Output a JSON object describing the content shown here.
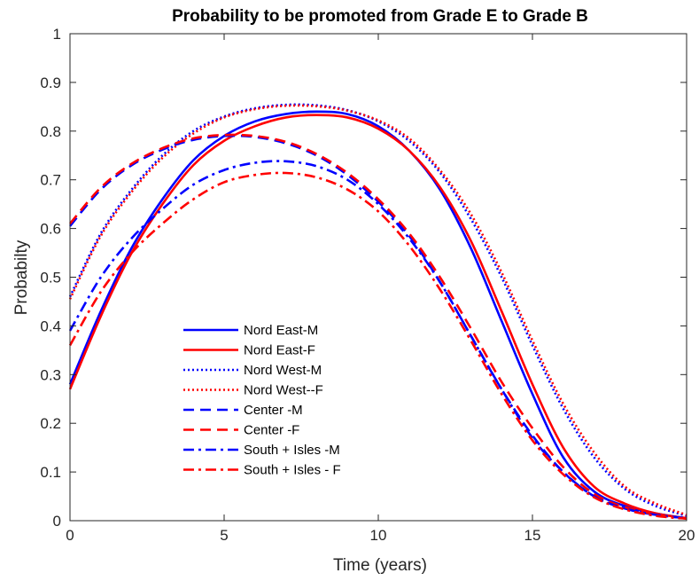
{
  "chart_data": {
    "type": "line",
    "title": "Probability to be promoted from Grade E to Grade B",
    "xlabel": "Time (years)",
    "ylabel": "Probabilty",
    "xlim": [
      0,
      20
    ],
    "ylim": [
      0,
      1
    ],
    "xticks": [
      "0",
      "5",
      "10",
      "15",
      "20"
    ],
    "yticks": [
      "0",
      "0.1",
      "0.2",
      "0.3",
      "0.4",
      "0.5",
      "0.6",
      "0.7",
      "0.8",
      "0.9",
      "1"
    ],
    "grid": false,
    "legend_position": "lower-left",
    "x": [
      0,
      1,
      2,
      3,
      4,
      5,
      6,
      7,
      8,
      9,
      10,
      11,
      12,
      13,
      14,
      15,
      16,
      17,
      18,
      19,
      20
    ],
    "series": [
      {
        "name": "Nord East-M",
        "color": "#0000ff",
        "style": "solid",
        "values": [
          0.28,
          0.43,
          0.56,
          0.66,
          0.74,
          0.79,
          0.82,
          0.835,
          0.84,
          0.835,
          0.81,
          0.76,
          0.68,
          0.56,
          0.41,
          0.26,
          0.13,
          0.06,
          0.03,
          0.015,
          0.005
        ]
      },
      {
        "name": "Nord East-F",
        "color": "#ff0000",
        "style": "solid",
        "values": [
          0.27,
          0.42,
          0.55,
          0.65,
          0.73,
          0.78,
          0.81,
          0.828,
          0.833,
          0.828,
          0.805,
          0.76,
          0.685,
          0.575,
          0.43,
          0.28,
          0.15,
          0.07,
          0.035,
          0.015,
          0.005
        ]
      },
      {
        "name": "Nord West-M",
        "color": "#0000ff",
        "style": "dotted",
        "values": [
          0.46,
          0.59,
          0.68,
          0.75,
          0.8,
          0.83,
          0.847,
          0.854,
          0.853,
          0.843,
          0.82,
          0.78,
          0.715,
          0.62,
          0.5,
          0.36,
          0.23,
          0.13,
          0.065,
          0.03,
          0.01
        ]
      },
      {
        "name": "Nord West--F",
        "color": "#ff0000",
        "style": "dotted",
        "values": [
          0.455,
          0.585,
          0.675,
          0.745,
          0.795,
          0.828,
          0.845,
          0.852,
          0.851,
          0.842,
          0.822,
          0.785,
          0.72,
          0.63,
          0.51,
          0.37,
          0.24,
          0.14,
          0.07,
          0.035,
          0.012
        ]
      },
      {
        "name": "Center -M",
        "color": "#0000ff",
        "style": "dashed",
        "values": [
          0.605,
          0.68,
          0.73,
          0.762,
          0.782,
          0.79,
          0.788,
          0.775,
          0.75,
          0.71,
          0.655,
          0.585,
          0.49,
          0.38,
          0.27,
          0.175,
          0.1,
          0.05,
          0.025,
          0.012,
          0.005
        ]
      },
      {
        "name": "Center -F",
        "color": "#ff0000",
        "style": "dashed",
        "values": [
          0.61,
          0.684,
          0.733,
          0.765,
          0.785,
          0.792,
          0.79,
          0.778,
          0.753,
          0.714,
          0.66,
          0.59,
          0.5,
          0.395,
          0.285,
          0.19,
          0.11,
          0.055,
          0.028,
          0.013,
          0.005
        ]
      },
      {
        "name": "South + Isles -M",
        "color": "#0000ff",
        "style": "dashdot",
        "values": [
          0.39,
          0.5,
          0.58,
          0.64,
          0.69,
          0.72,
          0.735,
          0.738,
          0.728,
          0.7,
          0.65,
          0.58,
          0.49,
          0.38,
          0.27,
          0.17,
          0.1,
          0.05,
          0.025,
          0.012,
          0.005
        ]
      },
      {
        "name": "South + Isles - F",
        "color": "#ff0000",
        "style": "dashdot",
        "values": [
          0.36,
          0.47,
          0.55,
          0.61,
          0.66,
          0.695,
          0.71,
          0.714,
          0.705,
          0.68,
          0.635,
          0.565,
          0.475,
          0.37,
          0.26,
          0.165,
          0.095,
          0.048,
          0.023,
          0.01,
          0.004
        ]
      }
    ]
  }
}
